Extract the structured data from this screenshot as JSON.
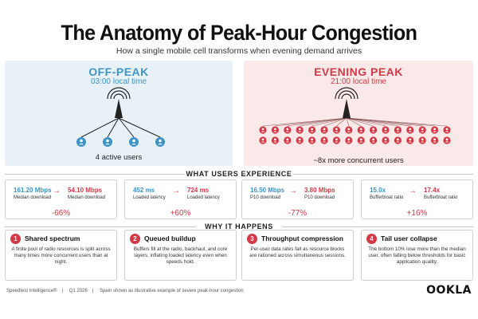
{
  "header": {
    "title": "The Anatomy of Peak-Hour Congestion",
    "subtitle": "How a single mobile cell transforms when evening demand arrives"
  },
  "off_peak": {
    "label": "OFF-PEAK",
    "time": "03:00 local time",
    "caption": "4 active users",
    "users_shown": 4,
    "color": "#3d93c4"
  },
  "evening_peak": {
    "label": "EVENING PEAK",
    "time": "21:00 local time",
    "caption": "~8x more concurrent users",
    "users_shown": 32,
    "color": "#d43a46"
  },
  "experience": {
    "heading": "WHAT USERS EXPERIENCE",
    "metrics": [
      {
        "before_value": "161.20 Mbps",
        "before_label": "Median download",
        "after_value": "54.10 Mbps",
        "after_label": "Median download",
        "change": "-66%"
      },
      {
        "before_value": "452 ms",
        "before_label": "Loaded latency",
        "after_value": "724 ms",
        "after_label": "Loaded latency",
        "change": "+60%"
      },
      {
        "before_value": "16.50 Mbps",
        "before_label": "P10 download",
        "after_value": "3.80 Mbps",
        "after_label": "P10 download",
        "change": "-77%"
      },
      {
        "before_value": "15.0x",
        "before_label": "Bufferbloat ratio",
        "after_value": "17.4x",
        "after_label": "Bufferbloat ratio",
        "change": "+16%"
      }
    ]
  },
  "reasons": {
    "heading": "WHY IT HAPPENS",
    "items": [
      {
        "num": "1",
        "title": "Shared spectrum",
        "body": "A finite pool of radio resources is split across many times more concurrent users than at night."
      },
      {
        "num": "2",
        "title": "Queued buildup",
        "body": "Buffers fill at the radio, backhaul, and core layers, inflating loaded latency even when speeds hold."
      },
      {
        "num": "3",
        "title": "Throughput compression",
        "body": "Per-user data rates fall as resource blocks are rationed across simultaneous sessions."
      },
      {
        "num": "4",
        "title": "Tail user collapse",
        "body": "The bottom 10% lose more than the median user, often falling below thresholds for basic application quality."
      }
    ]
  },
  "footer": {
    "source": "Speedtest Intelligence®",
    "period": "Q1 2026",
    "note": "Spain shown as illustrative example of severe peak-hour congestion",
    "logo": "OOKLA"
  },
  "colors": {
    "blue": "#3d93c4",
    "red": "#d43a46",
    "arrow_icon": "right-arrow-icon"
  }
}
